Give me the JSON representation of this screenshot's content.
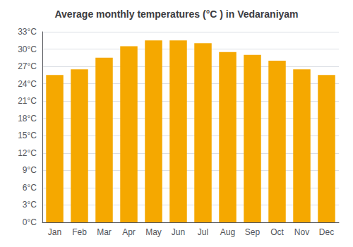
{
  "chart_data": {
    "type": "bar",
    "title": "Average monthly temperatures (°C ) in Vedaraniyam",
    "categories": [
      "Jan",
      "Feb",
      "Mar",
      "Apr",
      "May",
      "Jun",
      "Jul",
      "Aug",
      "Sep",
      "Oct",
      "Nov",
      "Dec"
    ],
    "values": [
      25.5,
      26.5,
      28.5,
      30.5,
      31.5,
      31.5,
      31.0,
      29.5,
      29.0,
      28.0,
      26.5,
      25.5
    ],
    "color": "#F5A800",
    "ylim": [
      0,
      33
    ],
    "yticks": [
      {
        "value": 0,
        "label": "0°C"
      },
      {
        "value": 3,
        "label": "3°C"
      },
      {
        "value": 6,
        "label": "6°C"
      },
      {
        "value": 9,
        "label": "9°C"
      },
      {
        "value": 12,
        "label": "12°C"
      },
      {
        "value": 15,
        "label": "15°C"
      },
      {
        "value": 18,
        "label": "18°C"
      },
      {
        "value": 21,
        "label": "21°C"
      },
      {
        "value": 24,
        "label": "24°C"
      },
      {
        "value": 27,
        "label": "27°C"
      },
      {
        "value": 30,
        "label": "30°C"
      },
      {
        "value": 33,
        "label": "33°C"
      }
    ],
    "grid": true
  }
}
